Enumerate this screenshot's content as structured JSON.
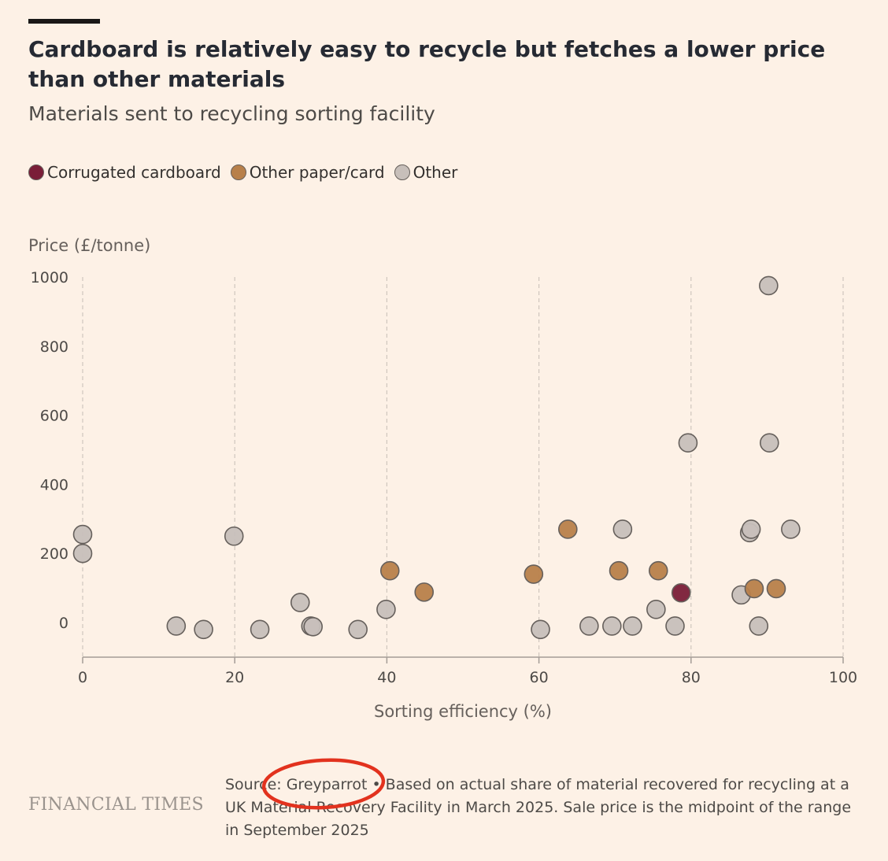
{
  "header": {
    "title": "Cardboard is relatively easy to recycle but fetches a lower price than other materials",
    "subtitle": "Materials sent to recycling sorting facility"
  },
  "legend": {
    "items": [
      {
        "label": "Corrugated cardboard",
        "color": "#7a1e38"
      },
      {
        "label": "Other paper/card",
        "color": "#b8804a"
      },
      {
        "label": "Other",
        "color": "#c7bfba"
      }
    ]
  },
  "footer": {
    "logo": "FINANCIAL TIMES",
    "source": "Source: Greyparrot • Based on actual share of material recovered for recycling at a UK Material Recovery Facility in March 2025. Sale price is the midpoint of the range in September 2025"
  },
  "annotation": {
    "color": "#e2321e"
  },
  "chart_data": {
    "type": "scatter",
    "title": "Cardboard is relatively easy to recycle but fetches a lower price than other materials",
    "xlabel": "Sorting efficiency (%)",
    "ylabel": "Price (£/tonne)",
    "xlim": [
      0,
      100
    ],
    "ylim": [
      -100,
      1000
    ],
    "xticks": [
      0,
      20,
      40,
      60,
      80,
      100
    ],
    "yticks": [
      0,
      200,
      400,
      600,
      800,
      1000
    ],
    "grid": "vertical-dashed",
    "legend_position": "top-left",
    "series": [
      {
        "name": "Corrugated cardboard",
        "color": "#7a1e38",
        "points": [
          {
            "x": 78.7,
            "y": 86
          }
        ]
      },
      {
        "name": "Other paper/card",
        "color": "#b8804a",
        "points": [
          {
            "x": 40.4,
            "y": 150
          },
          {
            "x": 44.9,
            "y": 88
          },
          {
            "x": 59.3,
            "y": 140
          },
          {
            "x": 63.8,
            "y": 270
          },
          {
            "x": 70.5,
            "y": 150
          },
          {
            "x": 75.7,
            "y": 150
          },
          {
            "x": 88.3,
            "y": 98
          },
          {
            "x": 91.2,
            "y": 98
          }
        ]
      },
      {
        "name": "Other",
        "color": "#c7bfba",
        "points": [
          {
            "x": 0,
            "y": 255
          },
          {
            "x": 0,
            "y": 200
          },
          {
            "x": 12.3,
            "y": -10
          },
          {
            "x": 15.9,
            "y": -20
          },
          {
            "x": 19.9,
            "y": 250
          },
          {
            "x": 23.3,
            "y": -20
          },
          {
            "x": 28.6,
            "y": 58
          },
          {
            "x": 30.0,
            "y": -10
          },
          {
            "x": 30.3,
            "y": -12
          },
          {
            "x": 36.2,
            "y": -20
          },
          {
            "x": 39.9,
            "y": 38
          },
          {
            "x": 60.2,
            "y": -20
          },
          {
            "x": 66.6,
            "y": -10
          },
          {
            "x": 69.6,
            "y": -10
          },
          {
            "x": 72.3,
            "y": -10
          },
          {
            "x": 71.0,
            "y": 270
          },
          {
            "x": 75.4,
            "y": 38
          },
          {
            "x": 77.9,
            "y": -10
          },
          {
            "x": 79.6,
            "y": 520
          },
          {
            "x": 86.6,
            "y": 80
          },
          {
            "x": 87.7,
            "y": 260
          },
          {
            "x": 87.9,
            "y": 270
          },
          {
            "x": 88.9,
            "y": -10
          },
          {
            "x": 90.2,
            "y": 975
          },
          {
            "x": 90.3,
            "y": 520
          },
          {
            "x": 93.1,
            "y": 270
          }
        ]
      }
    ]
  }
}
